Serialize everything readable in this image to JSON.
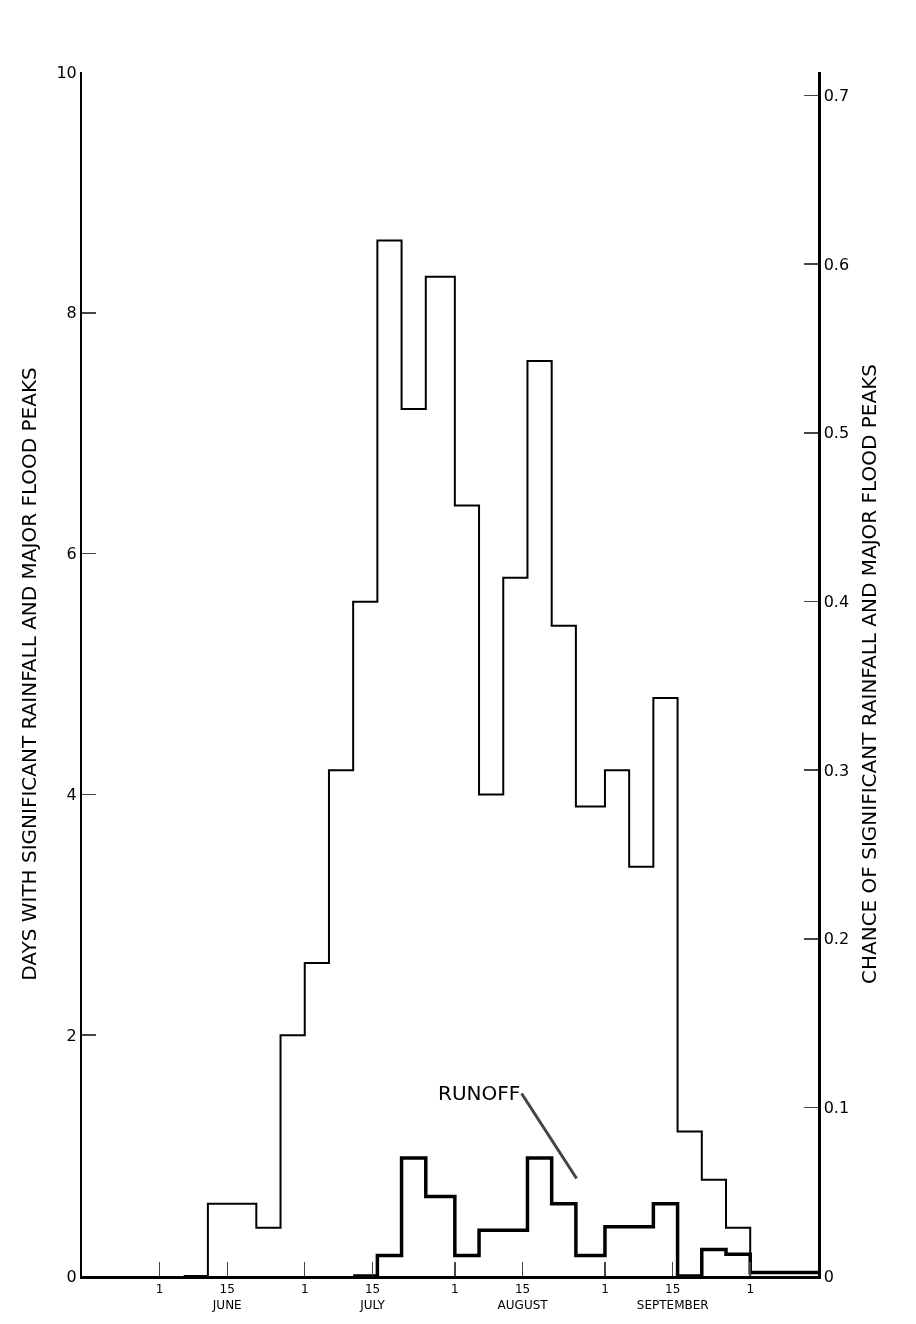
{
  "chart_data": {
    "type": "step",
    "ylabel": "DAYS WITH SIGNIFICANT RAINFALL AND MAJOR FLOOD PEAKS",
    "y2label": "CHANCE OF SIGNIFICANT RAINFALL AND MAJOR FLOOD PEAKS",
    "xlim": [
      "--05-16",
      "--10-15"
    ],
    "xticks": [
      {
        "value": "--06-01",
        "label": "1"
      },
      {
        "value": "--06-15",
        "label": "15\nJUNE"
      },
      {
        "value": "--07-01",
        "label": "1"
      },
      {
        "value": "--07-15",
        "label": "15\nJULY"
      },
      {
        "value": "--08-01",
        "label": "1"
      },
      {
        "value": "--08-15",
        "label": "15\nAUGUST"
      },
      {
        "value": "--09-01",
        "label": "1"
      },
      {
        "value": "--09-15",
        "label": "15\nSEPTEMBER"
      },
      {
        "value": "--10-01",
        "label": "1"
      }
    ],
    "ylim": [
      0,
      10
    ],
    "yticks": [
      0,
      2,
      4,
      6,
      8,
      10
    ],
    "y2lim": [
      0,
      0.714
    ],
    "y2ticks": [
      0,
      0.1,
      0.2,
      0.3,
      0.4,
      0.5,
      0.6,
      0.7
    ],
    "grid": false,
    "series": [
      {
        "color": "#000000",
        "x": [
          "--06-06",
          "--06-11",
          "--06-21",
          "--06-26",
          "--07-01",
          "--07-06",
          "--07-11",
          "--07-16",
          "--07-21",
          "--07-26",
          "--08-01",
          "--08-06",
          "--08-11",
          "--08-16",
          "--08-21",
          "--08-26",
          "--09-01",
          "--09-06",
          "--09-11",
          "--09-16",
          "--09-21",
          "--09-26",
          "--10-01"
        ],
        "values": [
          0,
          0.6,
          0.4,
          2.0,
          2.6,
          4.2,
          5.6,
          8.6,
          7.2,
          8.3,
          6.4,
          4.0,
          5.8,
          7.6,
          5.4,
          3.9,
          4.2,
          3.4,
          4.8,
          1.2,
          0.8,
          0.4,
          0
        ]
      },
      {
        "color": "#000000",
        "x": [
          "--07-11",
          "--07-16",
          "--07-21",
          "--07-26",
          "--08-01",
          "--08-06",
          "--08-11",
          "--08-16",
          "--08-21",
          "--08-26",
          "--09-01",
          "--09-06",
          "--09-11",
          "--09-16",
          "--09-21",
          "--09-26",
          "--10-01",
          "--10-15"
        ],
        "values": [
          0,
          0.17,
          0.98,
          0.66,
          0.17,
          0.38,
          0.38,
          0.98,
          0.6,
          0.17,
          0.41,
          0.41,
          0.6,
          0,
          0.22,
          0.18,
          0.03,
          0.03
        ]
      }
    ],
    "annotations": [
      "RUNOFF"
    ]
  }
}
